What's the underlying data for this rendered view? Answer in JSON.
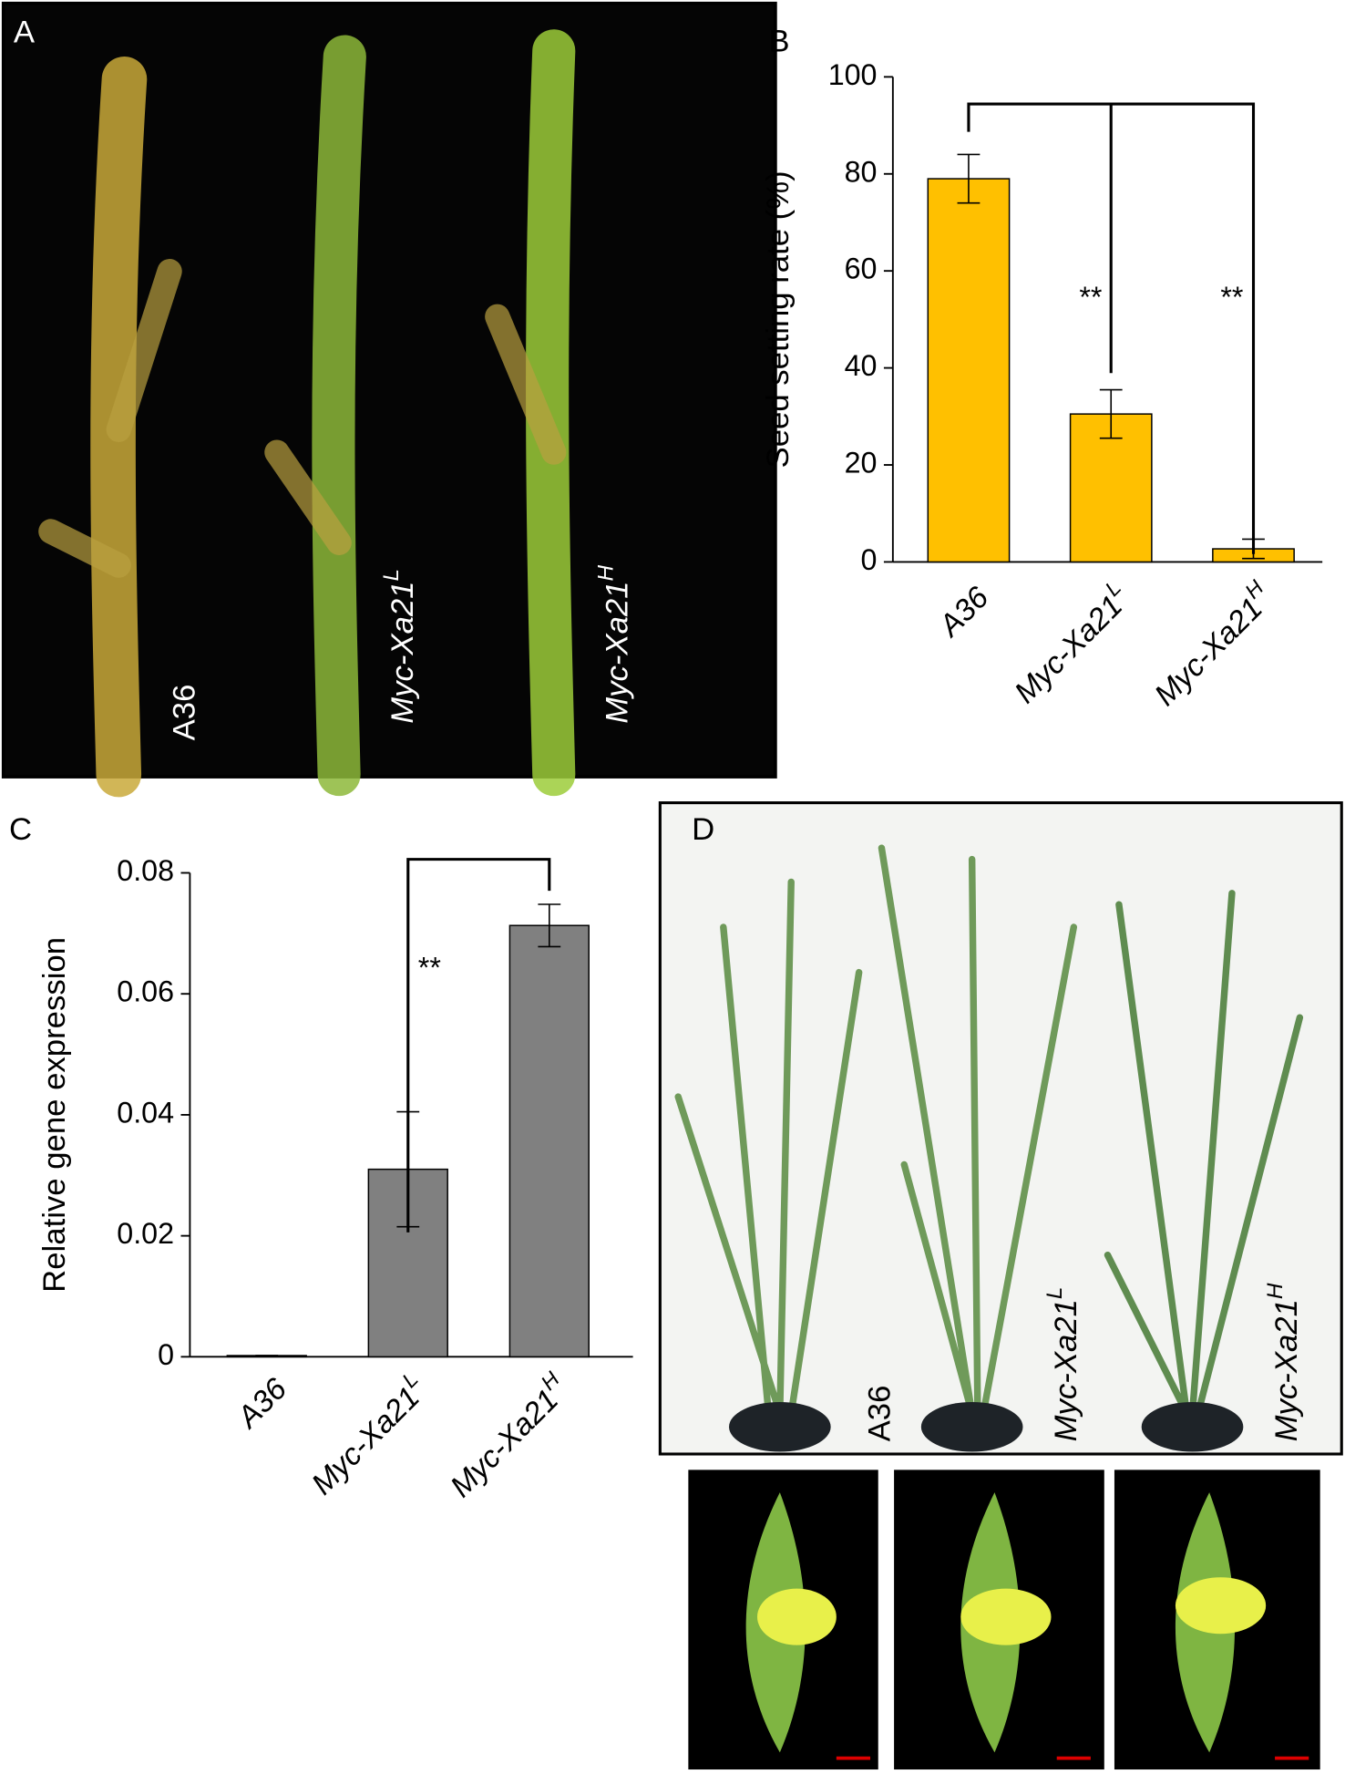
{
  "panel_labels": {
    "a": "A",
    "b": "B",
    "c": "C",
    "d": "D"
  },
  "photo_a": {
    "labels": [
      "A36",
      "Myc-Xa21",
      "Myc-Xa21"
    ],
    "superscripts": [
      null,
      "L",
      "H"
    ]
  },
  "photo_d": {
    "labels": [
      "A36",
      "Myc-Xa21",
      "Myc-Xa21"
    ],
    "superscripts": [
      null,
      "L",
      "H"
    ]
  },
  "chart_data": [
    {
      "type": "bar",
      "ylabel": "Seed setting rate (%)",
      "categories": [
        "A36",
        "Myc-Xa21",
        "Myc-Xa21"
      ],
      "category_superscripts": [
        null,
        "L",
        "H"
      ],
      "values": [
        79,
        30.5,
        2.7
      ],
      "errors": [
        5,
        5,
        2
      ],
      "color": "#ffc000",
      "ylim": [
        0,
        100
      ],
      "yticks": [
        0,
        20,
        40,
        60,
        80,
        100
      ],
      "annotations": [
        "**",
        "**"
      ]
    },
    {
      "type": "bar",
      "ylabel": "Relative gene expression",
      "categories": [
        "A36",
        "Myc-Xa21",
        "Myc-Xa21"
      ],
      "category_superscripts": [
        null,
        "L",
        "H"
      ],
      "values": [
        0.0002,
        0.031,
        0.0713
      ],
      "errors": [
        0,
        0.0095,
        0.0035
      ],
      "color": "#808080",
      "ylim": [
        0,
        0.08
      ],
      "yticks": [
        0,
        0.02,
        0.04,
        0.06,
        0.08
      ],
      "annotations": [
        "**"
      ]
    }
  ]
}
